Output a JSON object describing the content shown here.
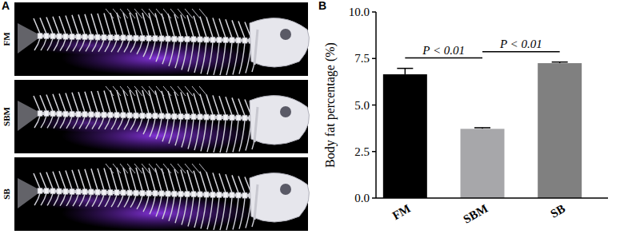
{
  "figure": {
    "panel_labels": [
      "A",
      "B"
    ],
    "image_labels": [
      "FM",
      "SBM",
      "SB"
    ]
  },
  "chart_data": {
    "type": "bar",
    "ylabel": "Body fat percentage (%)",
    "categories": [
      "FM",
      "SBM",
      "SB"
    ],
    "values": [
      6.65,
      3.72,
      7.25
    ],
    "errors": [
      0.32,
      0.06,
      0.06
    ],
    "colors": [
      "#000000",
      "#a7a7aa",
      "#808080"
    ],
    "ylim": [
      0,
      10
    ],
    "yticks": [
      {
        "value": 0,
        "label": "0.0"
      },
      {
        "value": 2.5,
        "label": "2.5"
      },
      {
        "value": 5,
        "label": "5.0"
      },
      {
        "value": 7.5,
        "label": "7.5"
      },
      {
        "value": 10,
        "label": "10.0"
      }
    ],
    "grid": false,
    "annotations": [
      {
        "text": "P < 0.01",
        "from": 0,
        "to": 1
      },
      {
        "text": "P < 0.01",
        "from": 1,
        "to": 2
      }
    ]
  }
}
